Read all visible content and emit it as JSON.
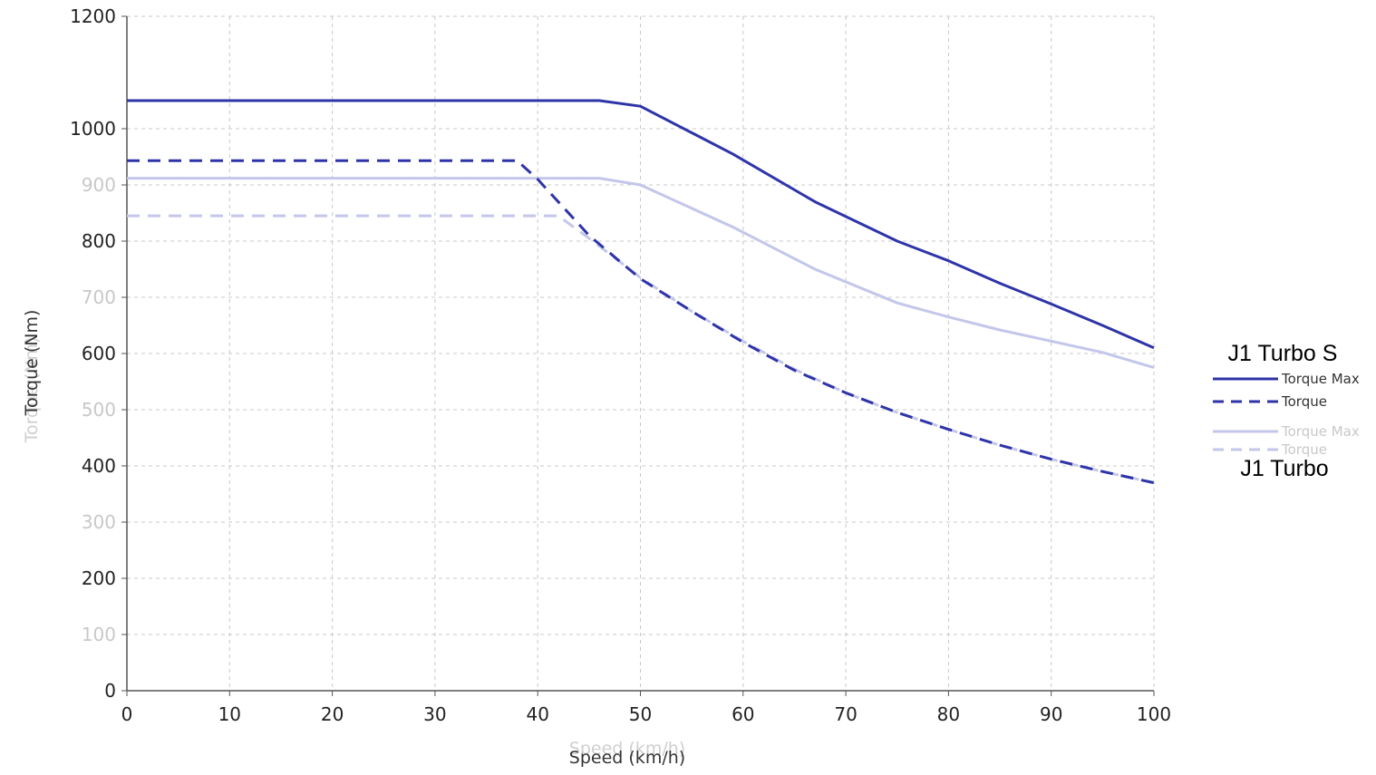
{
  "chart_data": {
    "type": "line",
    "title": "",
    "xlabel": "Speed (km/h)",
    "xlabel_ghost": "Speed (km/h)",
    "ylabel": "Torque (Nm)",
    "ylabel_ghost": "Torque (Nm)",
    "xlim": [
      0,
      100
    ],
    "ylim": [
      0,
      1200
    ],
    "grid": true,
    "x_ticks": [
      "0",
      "10",
      "20",
      "30",
      "40",
      "50",
      "60",
      "70",
      "80",
      "90",
      "100"
    ],
    "y_ticks": [
      {
        "value": 0,
        "label": "0",
        "faded": false
      },
      {
        "value": 100,
        "label": "100",
        "faded": true
      },
      {
        "value": 200,
        "label": "200",
        "faded": false
      },
      {
        "value": 300,
        "label": "300",
        "faded": true
      },
      {
        "value": 400,
        "label": "400",
        "faded": false
      },
      {
        "value": 500,
        "label": "500",
        "faded": true
      },
      {
        "value": 600,
        "label": "600",
        "faded": false
      },
      {
        "value": 700,
        "label": "700",
        "faded": true
      },
      {
        "value": 800,
        "label": "800",
        "faded": false
      },
      {
        "value": 900,
        "label": "900",
        "faded": true
      },
      {
        "value": 1000,
        "label": "1000",
        "faded": false
      },
      {
        "value": 1200,
        "label": "1200",
        "faded": false
      }
    ],
    "series": [
      {
        "name": "Torque Max",
        "group": "J1 Turbo S",
        "style": "solid",
        "color": "#2e34a8",
        "x": [
          0,
          46,
          50,
          59,
          67,
          75,
          80,
          85,
          90,
          95,
          100
        ],
        "y": [
          1050,
          1050,
          1040,
          955,
          870,
          800,
          765,
          725,
          688,
          650,
          610
        ]
      },
      {
        "name": "Torque",
        "group": "J1 Turbo S",
        "style": "dashed",
        "color": "#2e34a8",
        "x": [
          0,
          38,
          40,
          45,
          50,
          55,
          60,
          65,
          70,
          75,
          80,
          85,
          90,
          95,
          100
        ],
        "y": [
          943,
          943,
          910,
          810,
          733,
          675,
          620,
          570,
          530,
          495,
          465,
          437,
          412,
          390,
          370
        ]
      },
      {
        "name": "Torque Max",
        "group": "J1 Turbo",
        "style": "solid",
        "color": "#c4c6ea",
        "x": [
          0,
          46,
          50,
          59,
          67,
          75,
          80,
          85,
          90,
          95,
          100
        ],
        "y": [
          912,
          912,
          900,
          825,
          750,
          690,
          665,
          642,
          622,
          602,
          575
        ]
      },
      {
        "name": "Torque",
        "group": "J1 Turbo",
        "style": "dashed",
        "color": "#c4c6ea",
        "x": [
          0,
          42,
          45,
          50,
          55,
          60,
          65,
          70,
          75,
          80,
          85,
          90,
          95,
          100
        ],
        "y": [
          845,
          845,
          805,
          735,
          675,
          622,
          572,
          530,
          495,
          465,
          437,
          412,
          390,
          370
        ]
      }
    ],
    "legend": [
      {
        "title": "J1 Turbo S",
        "items": [
          {
            "label": "Torque Max",
            "style": "solid",
            "color": "#2e34a8"
          },
          {
            "label": "Torque",
            "style": "dashed",
            "color": "#2e34a8"
          }
        ]
      },
      {
        "title": "J1 Turbo",
        "items": [
          {
            "label": "Torque Max",
            "style": "solid",
            "color": "#c4c6ea"
          },
          {
            "label": "Torque",
            "style": "dashed",
            "color": "#c4c6ea"
          }
        ]
      }
    ],
    "legend_position": "right",
    "colors": {
      "axis": "#555555",
      "grid": "#c8c8c8",
      "tick_dark": "#222222",
      "tick_faded": "#c8c8c8"
    }
  }
}
